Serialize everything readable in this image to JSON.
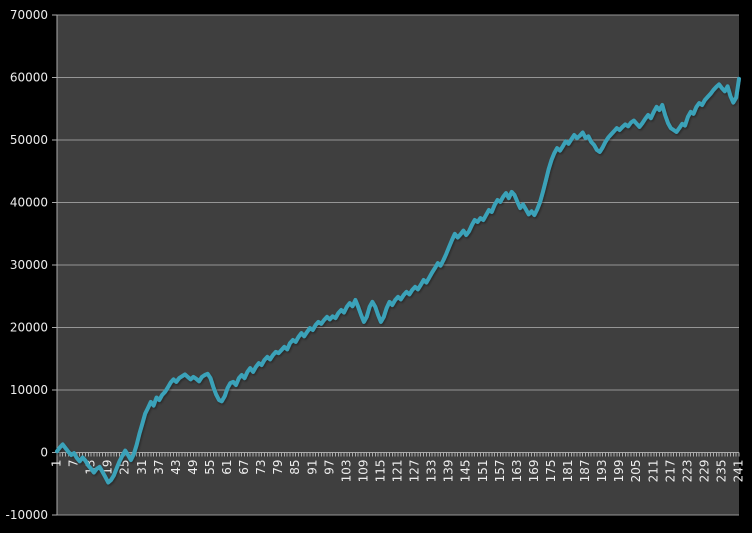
{
  "chart_data": {
    "type": "line",
    "title": "",
    "legend": "none",
    "grid": true,
    "background": "#000000",
    "plot_background": "#3F3F3F",
    "gridline_color": "#969696",
    "axis_color": "#ABABAB",
    "label_color": "#EDEDED",
    "series_color": "#3BA2B9",
    "ylim": [
      -10000,
      70000
    ],
    "y_tick_step": 10000,
    "y_axis": {
      "tick_labels": [
        "70000",
        "60000",
        "50000",
        "40000",
        "30000",
        "20000",
        "10000",
        "0",
        "-10000"
      ]
    },
    "x_axis": {
      "categories_count": 241,
      "tick_labels": [
        "1",
        "7",
        "13",
        "19",
        "25",
        "31",
        "37",
        "43",
        "49",
        "55",
        "61",
        "67",
        "73",
        "79",
        "85",
        "91",
        "97",
        "103",
        "109",
        "115",
        "121",
        "127",
        "133",
        "139",
        "145",
        "151",
        "157",
        "163",
        "169",
        "175",
        "181",
        "187",
        "193",
        "199",
        "205",
        "211",
        "217",
        "223",
        "229",
        "235",
        "241"
      ]
    },
    "series": [
      {
        "name": "",
        "values": [
          200,
          800,
          1300,
          700,
          100,
          -400,
          -100,
          -900,
          -1400,
          -800,
          -1300,
          -2100,
          -2600,
          -3200,
          -2600,
          -2300,
          -3100,
          -3900,
          -4800,
          -4400,
          -3700,
          -2500,
          -1400,
          -500,
          300,
          -400,
          -1200,
          -300,
          1200,
          3000,
          4600,
          6200,
          7100,
          8100,
          7500,
          8800,
          8400,
          9200,
          9700,
          10400,
          11200,
          11700,
          11300,
          11900,
          12200,
          12500,
          12100,
          11700,
          12100,
          11800,
          11400,
          12100,
          12400,
          12600,
          11900,
          10500,
          9300,
          8400,
          8200,
          9000,
          10300,
          11100,
          11300,
          10800,
          11900,
          12400,
          11900,
          12900,
          13500,
          12900,
          13700,
          14300,
          14000,
          14800,
          15300,
          14900,
          15600,
          16100,
          15900,
          16400,
          16900,
          16500,
          17500,
          18000,
          17700,
          18500,
          19100,
          18600,
          19300,
          19900,
          19600,
          20400,
          20900,
          20600,
          21200,
          21700,
          21300,
          21800,
          21500,
          22300,
          22800,
          22400,
          23300,
          23900,
          23400,
          24400,
          23300,
          22000,
          20900,
          21700,
          23300,
          24100,
          23300,
          22000,
          20900,
          21700,
          23100,
          24100,
          23600,
          24400,
          24900,
          24500,
          25200,
          25700,
          25300,
          26000,
          26500,
          26100,
          26800,
          27600,
          27200,
          28000,
          28800,
          29500,
          30300,
          29900,
          30800,
          31800,
          32900,
          34000,
          35000,
          34400,
          34900,
          35500,
          34800,
          35400,
          36400,
          37200,
          36900,
          37500,
          37200,
          38000,
          38800,
          38500,
          39600,
          40400,
          40100,
          40900,
          41500,
          40700,
          41700,
          41200,
          40100,
          39100,
          39700,
          38900,
          38100,
          38600,
          38000,
          38900,
          40100,
          41700,
          43500,
          45300,
          46800,
          47900,
          48700,
          48300,
          49000,
          49800,
          49400,
          50100,
          50800,
          50300,
          50700,
          51200,
          50300,
          50600,
          49700,
          49200,
          48400,
          48100,
          48800,
          49700,
          50400,
          50900,
          51400,
          51900,
          51600,
          52100,
          52500,
          52200,
          52800,
          53100,
          52600,
          52100,
          52700,
          53400,
          54000,
          53500,
          54500,
          55300,
          54800,
          55600,
          54000,
          52700,
          51900,
          51600,
          51300,
          51900,
          52600,
          52300,
          53700,
          54500,
          54200,
          55300,
          55900,
          55600,
          56400,
          56900,
          57400,
          58000,
          58500,
          58900,
          58300,
          57800,
          58600,
          57000,
          56000,
          56800,
          59800
        ]
      }
    ]
  }
}
